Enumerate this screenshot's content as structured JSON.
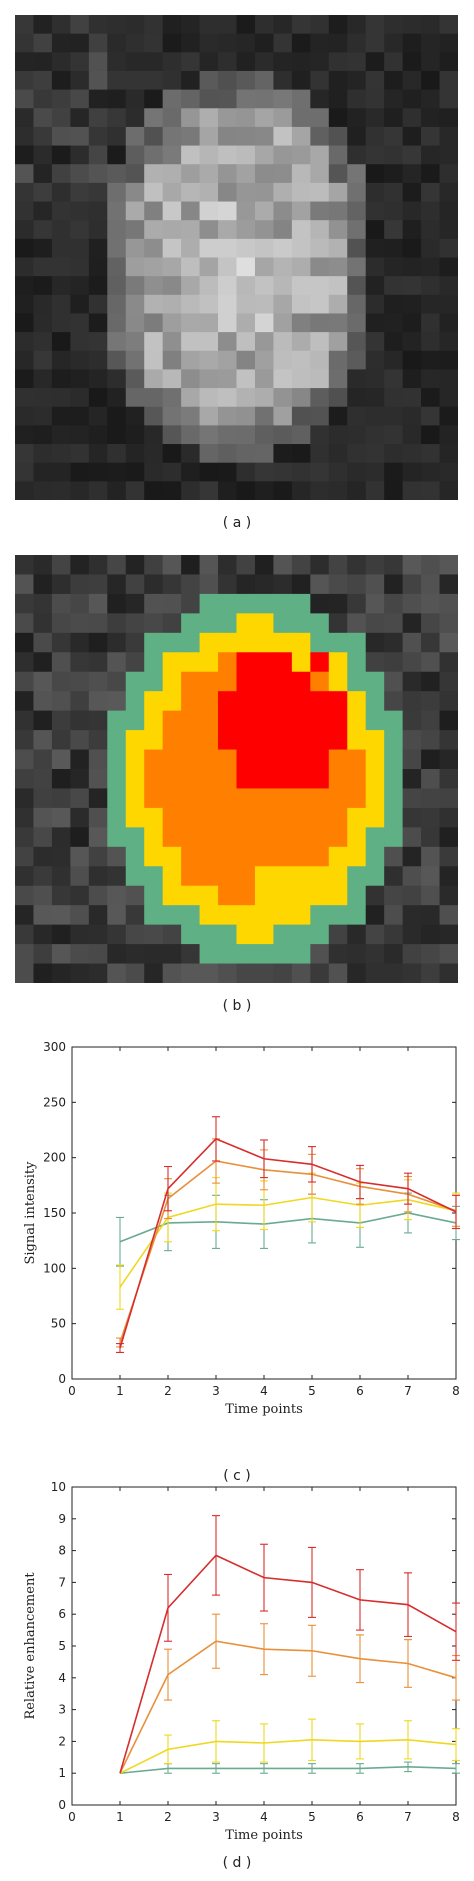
{
  "captions": {
    "a": "( a )",
    "b": "( b )",
    "c": "( c )",
    "d": "( d )"
  },
  "images": {
    "a": {
      "description_colors": [
        "#000000",
        "#ffffff"
      ]
    },
    "b": {
      "overlay_colors": {
        "outer": "#5fb084",
        "ring": "#ffd700",
        "inner": "#ff8000",
        "core": "#ff0000"
      }
    }
  },
  "chart_data": [
    {
      "id": "c",
      "type": "line",
      "xlabel": "Time points",
      "ylabel": "Signal intensity",
      "xlim": [
        0,
        8
      ],
      "ylim": [
        0,
        300
      ],
      "xticks": [
        0,
        1,
        2,
        3,
        4,
        5,
        6,
        7,
        8
      ],
      "yticks": [
        0,
        50,
        100,
        150,
        200,
        250,
        300
      ],
      "x": [
        1,
        2,
        3,
        4,
        5,
        6,
        7,
        8
      ],
      "series": [
        {
          "color": "#d62d2d",
          "values": [
            28,
            172,
            217,
            199,
            194,
            178,
            172,
            151
          ],
          "err": [
            4,
            20,
            20,
            17,
            16,
            15,
            14,
            15
          ]
        },
        {
          "color": "#e8903a",
          "values": [
            33,
            163,
            197,
            189,
            185,
            174,
            167,
            152
          ],
          "err": [
            4,
            18,
            20,
            18,
            18,
            16,
            16,
            14
          ]
        },
        {
          "color": "#f0d820",
          "values": [
            83,
            146,
            158,
            157,
            164,
            157,
            162,
            152
          ],
          "err": [
            20,
            22,
            24,
            22,
            22,
            20,
            18,
            16
          ]
        },
        {
          "color": "#6aab90",
          "values": [
            124,
            141,
            142,
            140,
            145,
            141,
            150,
            141
          ],
          "err": [
            22,
            25,
            24,
            22,
            22,
            22,
            18,
            15
          ]
        }
      ]
    },
    {
      "id": "d",
      "type": "line",
      "xlabel": "Time points",
      "ylabel": "Relative enhancement",
      "xlim": [
        0,
        8
      ],
      "ylim": [
        0,
        10
      ],
      "xticks": [
        0,
        1,
        2,
        3,
        4,
        5,
        6,
        7,
        8
      ],
      "yticks": [
        0,
        1,
        2,
        3,
        4,
        5,
        6,
        7,
        8,
        9,
        10
      ],
      "x": [
        1,
        2,
        3,
        4,
        5,
        6,
        7,
        8
      ],
      "series": [
        {
          "color": "#d62d2d",
          "values": [
            1,
            6.2,
            7.85,
            7.15,
            7.0,
            6.45,
            6.3,
            5.45
          ],
          "err": [
            0,
            1.05,
            1.25,
            1.05,
            1.1,
            0.95,
            1.0,
            0.9
          ]
        },
        {
          "color": "#e8903a",
          "values": [
            1,
            4.1,
            5.15,
            4.9,
            4.85,
            4.6,
            4.45,
            4.0
          ],
          "err": [
            0,
            0.8,
            0.85,
            0.8,
            0.8,
            0.75,
            0.75,
            0.7
          ]
        },
        {
          "color": "#f0d820",
          "values": [
            1,
            1.75,
            2.0,
            1.95,
            2.05,
            2.0,
            2.05,
            1.9
          ],
          "err": [
            0,
            0.45,
            0.65,
            0.6,
            0.65,
            0.55,
            0.6,
            0.5
          ]
        },
        {
          "color": "#6aab90",
          "values": [
            1,
            1.15,
            1.15,
            1.15,
            1.15,
            1.15,
            1.2,
            1.15
          ],
          "err": [
            0,
            0.15,
            0.15,
            0.15,
            0.15,
            0.15,
            0.15,
            0.15
          ]
        }
      ]
    }
  ]
}
